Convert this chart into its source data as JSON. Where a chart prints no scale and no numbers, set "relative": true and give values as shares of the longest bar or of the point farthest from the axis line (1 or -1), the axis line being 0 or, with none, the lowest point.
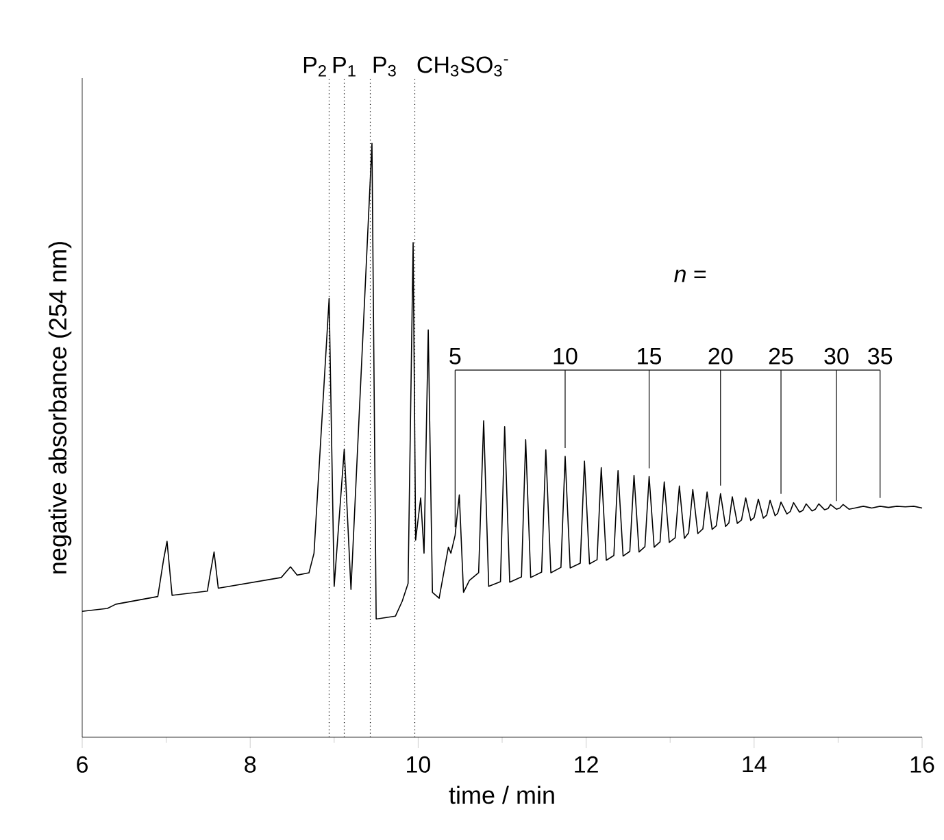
{
  "chart_data": {
    "type": "line",
    "relative": true,
    "xlabel": "time / min",
    "ylabel": "negative absorbance (254 nm)",
    "xlim": [
      6,
      16
    ],
    "xticks": [
      6,
      8,
      10,
      12,
      14,
      16
    ],
    "series": [
      {
        "color": "#000000",
        "x": [
          6.0,
          6.3,
          6.4,
          6.9,
          6.97,
          7.01,
          7.07,
          7.49,
          7.53,
          7.57,
          7.62,
          8.37,
          8.48,
          8.56,
          8.7,
          8.76,
          8.94,
          9.0,
          9.12,
          9.2,
          9.45,
          9.5,
          9.73,
          9.81,
          9.88,
          9.94,
          9.97,
          10.03,
          10.07,
          10.12,
          10.17,
          10.25,
          10.36,
          10.39,
          10.44,
          10.49,
          10.54,
          10.61,
          10.72,
          10.78,
          10.84,
          10.98,
          11.03,
          11.09,
          11.23,
          11.28,
          11.34,
          11.47,
          11.52,
          11.58,
          11.7,
          11.75,
          11.81,
          11.93,
          11.98,
          12.04,
          12.13,
          12.18,
          12.24,
          12.33,
          12.38,
          12.44,
          12.52,
          12.57,
          12.63,
          12.7,
          12.75,
          12.81,
          12.88,
          12.93,
          12.99,
          13.06,
          13.11,
          13.17,
          13.22,
          13.27,
          13.33,
          13.39,
          13.44,
          13.5,
          13.55,
          13.6,
          13.66,
          13.7,
          13.74,
          13.8,
          13.85,
          13.9,
          13.96,
          14.0,
          14.05,
          14.11,
          14.15,
          14.19,
          14.25,
          14.28,
          14.32,
          14.39,
          14.43,
          14.47,
          14.54,
          14.58,
          14.62,
          14.69,
          14.73,
          14.77,
          14.84,
          14.88,
          14.91,
          14.98,
          15.02,
          15.06,
          15.13,
          15.2,
          15.3,
          15.4,
          15.5,
          15.6,
          15.7,
          15.8,
          15.9,
          16.0
        ],
        "values": [
          0.212,
          0.217,
          0.224,
          0.237,
          0.3,
          0.33,
          0.239,
          0.246,
          0.28,
          0.312,
          0.251,
          0.269,
          0.287,
          0.273,
          0.277,
          0.31,
          0.739,
          0.254,
          0.485,
          0.249,
          1.0,
          0.199,
          0.204,
          0.229,
          0.259,
          0.833,
          0.332,
          0.403,
          0.31,
          0.686,
          0.244,
          0.234,
          0.32,
          0.31,
          0.34,
          0.408,
          0.244,
          0.264,
          0.277,
          0.533,
          0.254,
          0.262,
          0.523,
          0.261,
          0.27,
          0.501,
          0.269,
          0.278,
          0.484,
          0.277,
          0.286,
          0.473,
          0.285,
          0.293,
          0.465,
          0.292,
          0.299,
          0.454,
          0.298,
          0.306,
          0.449,
          0.305,
          0.313,
          0.441,
          0.312,
          0.321,
          0.439,
          0.32,
          0.329,
          0.43,
          0.328,
          0.336,
          0.423,
          0.335,
          0.344,
          0.417,
          0.343,
          0.351,
          0.413,
          0.35,
          0.356,
          0.41,
          0.355,
          0.361,
          0.405,
          0.36,
          0.366,
          0.403,
          0.365,
          0.37,
          0.401,
          0.369,
          0.374,
          0.399,
          0.373,
          0.377,
          0.396,
          0.376,
          0.38,
          0.395,
          0.379,
          0.382,
          0.393,
          0.381,
          0.384,
          0.393,
          0.383,
          0.385,
          0.392,
          0.384,
          0.386,
          0.392,
          0.384,
          0.386,
          0.389,
          0.386,
          0.389,
          0.387,
          0.389,
          0.388,
          0.389,
          0.386
        ]
      }
    ],
    "ref_lines": [
      {
        "axis": "x",
        "value": 8.94,
        "label": "P$_{2}$",
        "line_style": "dotted",
        "color": "#000000"
      },
      {
        "axis": "x",
        "value": 9.12,
        "label": "P$_{1}$",
        "line_style": "dotted",
        "color": "#000000"
      },
      {
        "axis": "x",
        "value": 9.43,
        "label": "P$_{3}$",
        "line_style": "dotted",
        "color": "#000000"
      },
      {
        "axis": "x",
        "value": 9.96,
        "label": "CH$_{3}$SO$_{3}$$^{-}$",
        "line_style": "dotted",
        "color": "#000000"
      }
    ],
    "annotations": [
      "*n* =",
      {
        "text": "5",
        "x": 10.44,
        "y": 0.34
      },
      {
        "text": "10",
        "x": 11.75,
        "y": 0.473
      },
      {
        "text": "15",
        "x": 12.75,
        "y": 0.439
      },
      {
        "text": "20",
        "x": 13.6,
        "y": 0.41
      },
      {
        "text": "25",
        "x": 14.32,
        "y": 0.396
      },
      {
        "text": "30",
        "x": 14.98,
        "y": 0.384
      },
      {
        "text": "35",
        "x": 15.5,
        "y": 0.389
      }
    ]
  }
}
